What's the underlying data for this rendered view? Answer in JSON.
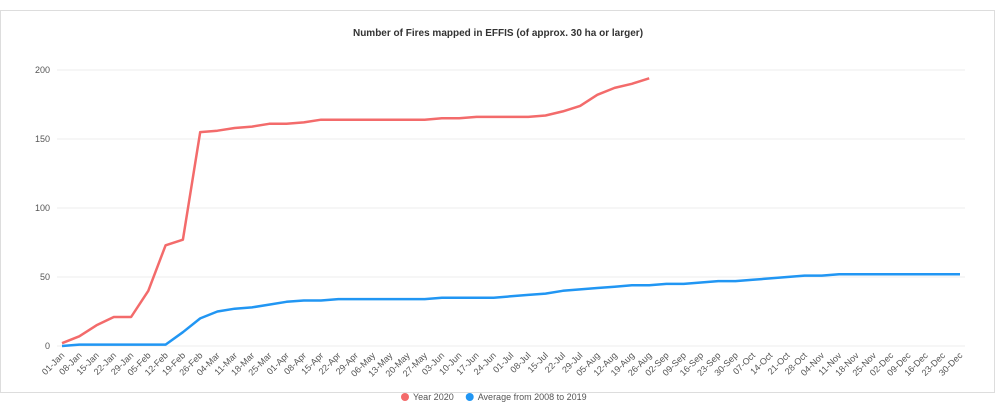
{
  "chart_data": {
    "type": "line",
    "title": "Number of Fires mapped in EFFIS (of approx. 30 ha or larger)",
    "categories": [
      "01-Jan",
      "08-Jan",
      "15-Jan",
      "22-Jan",
      "29-Jan",
      "05-Feb",
      "12-Feb",
      "19-Feb",
      "26-Feb",
      "04-Mar",
      "11-Mar",
      "18-Mar",
      "25-Mar",
      "01-Apr",
      "08-Apr",
      "15-Apr",
      "22-Apr",
      "29-Apr",
      "06-May",
      "13-May",
      "20-May",
      "27-May",
      "03-Jun",
      "10-Jun",
      "17-Jun",
      "24-Jun",
      "01-Jul",
      "08-Jul",
      "15-Jul",
      "22-Jul",
      "29-Jul",
      "05-Aug",
      "12-Aug",
      "19-Aug",
      "26-Aug",
      "02-Sep",
      "09-Sep",
      "16-Sep",
      "23-Sep",
      "30-Sep",
      "07-Oct",
      "14-Oct",
      "21-Oct",
      "28-Oct",
      "04-Nov",
      "11-Nov",
      "18-Nov",
      "25-Nov",
      "02-Dec",
      "09-Dec",
      "16-Dec",
      "23-Dec",
      "30-Dec"
    ],
    "series": [
      {
        "name": "Year 2020",
        "color": "#f36b6b",
        "values": [
          2,
          7,
          15,
          21,
          21,
          40,
          73,
          77,
          155,
          156,
          158,
          159,
          161,
          161,
          162,
          164,
          164,
          164,
          164,
          164,
          164,
          164,
          165,
          165,
          166,
          166,
          166,
          166,
          167,
          170,
          174,
          182,
          187,
          190,
          194,
          null,
          null,
          null,
          null,
          null,
          null,
          null,
          null,
          null,
          null,
          null,
          null,
          null,
          null,
          null,
          null,
          null,
          null
        ]
      },
      {
        "name": "Average from 2008 to 2019",
        "color": "#2196f3",
        "values": [
          0,
          1,
          1,
          1,
          1,
          1,
          1,
          10,
          20,
          25,
          27,
          28,
          30,
          32,
          33,
          33,
          34,
          34,
          34,
          34,
          34,
          34,
          35,
          35,
          35,
          35,
          36,
          37,
          38,
          40,
          41,
          42,
          43,
          44,
          44,
          45,
          45,
          46,
          47,
          47,
          48,
          49,
          50,
          51,
          51,
          52,
          52,
          52,
          52,
          52,
          52,
          52,
          52
        ]
      }
    ],
    "ylim": [
      0,
      200
    ],
    "yticks": [
      0,
      50,
      100,
      150,
      200
    ],
    "grid": true,
    "legend": "bottom"
  }
}
